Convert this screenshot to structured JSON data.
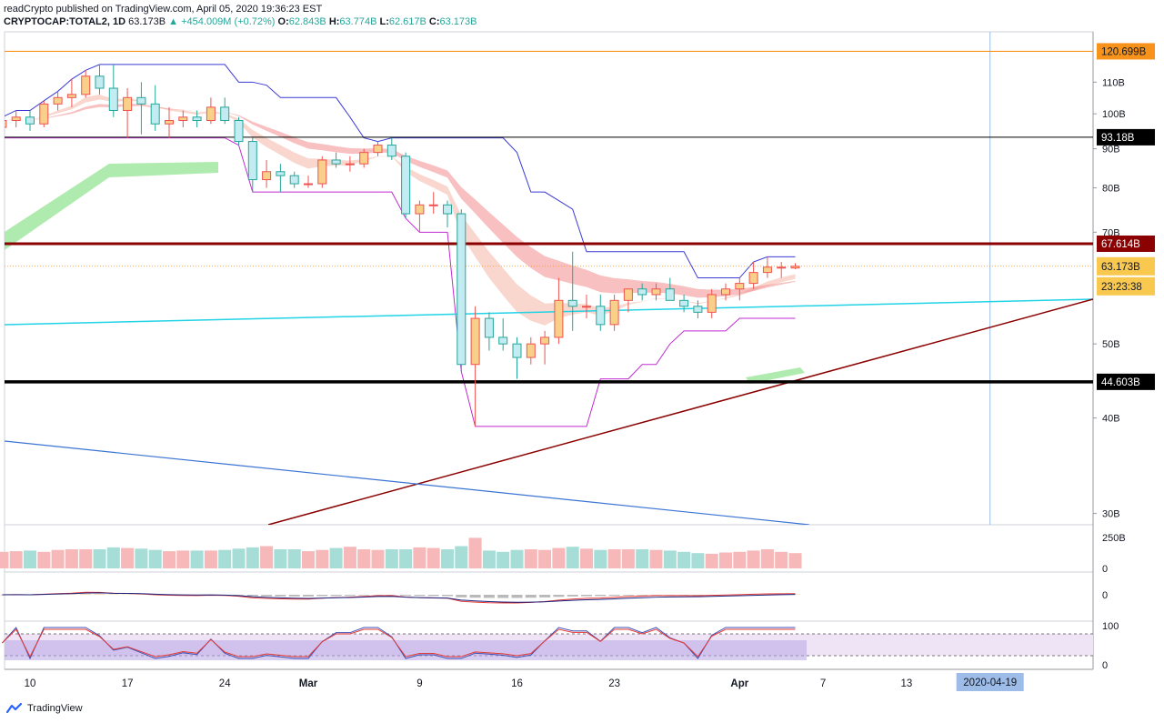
{
  "header": {
    "publisher": "readCrypto published on TradingView.com, April 05, 2020 19:36:23 EST",
    "symbol": "CRYPTOCAP:TOTAL2, 1D",
    "last": "63.173B",
    "change": "▲ +454.009M (+0.72%)",
    "o_label": "O:",
    "o": "62.843B",
    "h_label": "H:",
    "h": "63.774B",
    "l_label": "L:",
    "l": "62.617B",
    "c_label": "C:",
    "c": "63.173B"
  },
  "footer": {
    "brand": "TradingView"
  },
  "colors": {
    "up": "#26a69a",
    "down": "#ef5350",
    "bull_body": "#f9d089",
    "bear_body": "#c2ecf2",
    "orange": "#f7931a",
    "darkred": "#8b0000",
    "cyan": "#22d3e6",
    "blue": "#3b74d4",
    "purple": "#c02bd0",
    "navy": "#3b3bd6"
  },
  "chart_data": [
    {
      "type": "candlestick",
      "symbol": "CRYPTOCAP:TOTAL2",
      "interval": "1D",
      "y_scale": "log",
      "ylim": [
        29,
        128
      ],
      "y_ticks": [
        "30B",
        "40B",
        "50B",
        "70B",
        "80B",
        "90B",
        "100B",
        "110B"
      ],
      "x_ticks": [
        "10",
        "17",
        "24",
        "Mar",
        "9",
        "16",
        "23",
        "Apr",
        "7",
        "13"
      ],
      "x_highlight": "2020-04-19",
      "candles": [
        {
          "date": "2020-02-08",
          "o": 96,
          "h": 99,
          "l": 93,
          "c": 98
        },
        {
          "date": "2020-02-09",
          "o": 98,
          "h": 101,
          "l": 96,
          "c": 99
        },
        {
          "date": "2020-02-10",
          "o": 99,
          "h": 101,
          "l": 95,
          "c": 97
        },
        {
          "date": "2020-02-11",
          "o": 97,
          "h": 104,
          "l": 96,
          "c": 103
        },
        {
          "date": "2020-02-12",
          "o": 103,
          "h": 107,
          "l": 101,
          "c": 105
        },
        {
          "date": "2020-02-13",
          "o": 105,
          "h": 111,
          "l": 102,
          "c": 106
        },
        {
          "date": "2020-02-14",
          "o": 106,
          "h": 114,
          "l": 105,
          "c": 112
        },
        {
          "date": "2020-02-15",
          "o": 112,
          "h": 116,
          "l": 106,
          "c": 108
        },
        {
          "date": "2020-02-16",
          "o": 108,
          "h": 116,
          "l": 99,
          "c": 101
        },
        {
          "date": "2020-02-17",
          "o": 101,
          "h": 108,
          "l": 93,
          "c": 105
        },
        {
          "date": "2020-02-18",
          "o": 105,
          "h": 110,
          "l": 94,
          "c": 103
        },
        {
          "date": "2020-02-19",
          "o": 103,
          "h": 109,
          "l": 95,
          "c": 97
        },
        {
          "date": "2020-02-20",
          "o": 97,
          "h": 102,
          "l": 93,
          "c": 98
        },
        {
          "date": "2020-02-21",
          "o": 98,
          "h": 101,
          "l": 96,
          "c": 99
        },
        {
          "date": "2020-02-22",
          "o": 99,
          "h": 101,
          "l": 96,
          "c": 98
        },
        {
          "date": "2020-02-23",
          "o": 98,
          "h": 105,
          "l": 97,
          "c": 102
        },
        {
          "date": "2020-02-24",
          "o": 102,
          "h": 105,
          "l": 97,
          "c": 98
        },
        {
          "date": "2020-02-25",
          "o": 98,
          "h": 99,
          "l": 91,
          "c": 92
        },
        {
          "date": "2020-02-26",
          "o": 92,
          "h": 93,
          "l": 79,
          "c": 82
        },
        {
          "date": "2020-02-27",
          "o": 82,
          "h": 87,
          "l": 80,
          "c": 84
        },
        {
          "date": "2020-02-28",
          "o": 84,
          "h": 86,
          "l": 79,
          "c": 83
        },
        {
          "date": "2020-02-29",
          "o": 83,
          "h": 84,
          "l": 80,
          "c": 81
        },
        {
          "date": "2020-03-01",
          "o": 81,
          "h": 83,
          "l": 80,
          "c": 81
        },
        {
          "date": "2020-03-02",
          "o": 81,
          "h": 88,
          "l": 80,
          "c": 87
        },
        {
          "date": "2020-03-03",
          "o": 87,
          "h": 89,
          "l": 85,
          "c": 86
        },
        {
          "date": "2020-03-04",
          "o": 86,
          "h": 88,
          "l": 84,
          "c": 86
        },
        {
          "date": "2020-03-05",
          "o": 86,
          "h": 90,
          "l": 85,
          "c": 89
        },
        {
          "date": "2020-03-06",
          "o": 89,
          "h": 92,
          "l": 88,
          "c": 91
        },
        {
          "date": "2020-03-07",
          "o": 91,
          "h": 93,
          "l": 87,
          "c": 88
        },
        {
          "date": "2020-03-08",
          "o": 88,
          "h": 89,
          "l": 73,
          "c": 74
        },
        {
          "date": "2020-03-09",
          "o": 74,
          "h": 77,
          "l": 70,
          "c": 76
        },
        {
          "date": "2020-03-10",
          "o": 76,
          "h": 79,
          "l": 74,
          "c": 76
        },
        {
          "date": "2020-03-11",
          "o": 76,
          "h": 77,
          "l": 71,
          "c": 74
        },
        {
          "date": "2020-03-12",
          "o": 74,
          "h": 75,
          "l": 46,
          "c": 47
        },
        {
          "date": "2020-03-13",
          "o": 47,
          "h": 56,
          "l": 39,
          "c": 54
        },
        {
          "date": "2020-03-14",
          "o": 54,
          "h": 55,
          "l": 49,
          "c": 51
        },
        {
          "date": "2020-03-15",
          "o": 51,
          "h": 54,
          "l": 49,
          "c": 50
        },
        {
          "date": "2020-03-16",
          "o": 50,
          "h": 51,
          "l": 45,
          "c": 48
        },
        {
          "date": "2020-03-17",
          "o": 48,
          "h": 51,
          "l": 47,
          "c": 50
        },
        {
          "date": "2020-03-18",
          "o": 50,
          "h": 52,
          "l": 47,
          "c": 51
        },
        {
          "date": "2020-03-19",
          "o": 51,
          "h": 61,
          "l": 50,
          "c": 57
        },
        {
          "date": "2020-03-20",
          "o": 57,
          "h": 66,
          "l": 52,
          "c": 56
        },
        {
          "date": "2020-03-21",
          "o": 56,
          "h": 58,
          "l": 54,
          "c": 56
        },
        {
          "date": "2020-03-22",
          "o": 56,
          "h": 58,
          "l": 52,
          "c": 53
        },
        {
          "date": "2020-03-23",
          "o": 53,
          "h": 58,
          "l": 52,
          "c": 57
        },
        {
          "date": "2020-03-24",
          "o": 57,
          "h": 59,
          "l": 55,
          "c": 59
        },
        {
          "date": "2020-03-25",
          "o": 59,
          "h": 60,
          "l": 57,
          "c": 58
        },
        {
          "date": "2020-03-26",
          "o": 58,
          "h": 60,
          "l": 57,
          "c": 59
        },
        {
          "date": "2020-03-27",
          "o": 59,
          "h": 61,
          "l": 57,
          "c": 57
        },
        {
          "date": "2020-03-28",
          "o": 57,
          "h": 58,
          "l": 55,
          "c": 56
        },
        {
          "date": "2020-03-29",
          "o": 56,
          "h": 57,
          "l": 54,
          "c": 55
        },
        {
          "date": "2020-03-30",
          "o": 55,
          "h": 59,
          "l": 54,
          "c": 58
        },
        {
          "date": "2020-03-31",
          "o": 58,
          "h": 60,
          "l": 57,
          "c": 59
        },
        {
          "date": "2020-04-01",
          "o": 59,
          "h": 61,
          "l": 57,
          "c": 60
        },
        {
          "date": "2020-04-02",
          "o": 60,
          "h": 64,
          "l": 59,
          "c": 62
        },
        {
          "date": "2020-04-03",
          "o": 62,
          "h": 65,
          "l": 61,
          "c": 63
        },
        {
          "date": "2020-04-04",
          "o": 63,
          "h": 64,
          "l": 61,
          "c": 63
        },
        {
          "date": "2020-04-05",
          "o": 62.843,
          "h": 63.774,
          "l": 62.617,
          "c": 63.173
        }
      ],
      "levels": [
        {
          "label": "120.699B",
          "value": 120.699,
          "color": "#f7931a",
          "kind": "horizontal"
        },
        {
          "label": "93.18B",
          "value": 93.18,
          "color": "#000000",
          "kind": "horizontal"
        },
        {
          "label": "67.614B",
          "value": 67.614,
          "color": "#8b0000",
          "kind": "horizontal"
        },
        {
          "label": "44.603B",
          "value": 44.603,
          "color": "#000000",
          "kind": "horizontal"
        }
      ],
      "last_price_label": "63.173B",
      "countdown_label": "23:23:38"
    },
    {
      "type": "bar",
      "panel": "volume",
      "y_ticks": [
        "250B",
        "0"
      ],
      "values": [
        130,
        135,
        140,
        130,
        145,
        150,
        150,
        150,
        165,
        160,
        155,
        145,
        135,
        140,
        140,
        140,
        145,
        155,
        165,
        175,
        150,
        150,
        135,
        145,
        160,
        170,
        150,
        145,
        150,
        150,
        165,
        160,
        150,
        175,
        240,
        140,
        130,
        145,
        150,
        145,
        160,
        170,
        155,
        145,
        150,
        150,
        150,
        145,
        140,
        130,
        120,
        115,
        125,
        130,
        140,
        150,
        130,
        120
      ]
    },
    {
      "type": "line",
      "panel": "macd",
      "y_ticks": [
        "0"
      ]
    },
    {
      "type": "line",
      "panel": "stoch_rsi",
      "y_ticks": [
        "100",
        "0"
      ]
    }
  ]
}
